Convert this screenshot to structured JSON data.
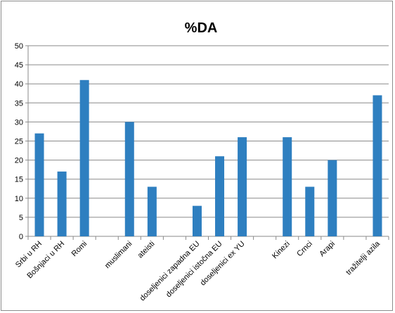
{
  "chart_data": {
    "type": "bar",
    "title": "%DA",
    "xlabel": "",
    "ylabel": "",
    "ylim": [
      0,
      50
    ],
    "y_ticks": [
      0,
      5,
      10,
      15,
      20,
      25,
      30,
      35,
      40,
      45,
      50
    ],
    "grid": true,
    "legend": "none",
    "bar_color": "#2e7fc0",
    "categories": [
      "Srbi u RH",
      "Bošnjaci u RH",
      "Romi",
      "",
      "muslimani",
      "ateisti",
      "",
      "doseljenici zapadna EU",
      "doseljenici istočna EU",
      "doseljenici ex YU",
      "",
      "Kinezi",
      "Crnci",
      "Arapi",
      "",
      "tražitelji azila"
    ],
    "values": [
      27,
      17,
      41,
      null,
      30,
      13,
      null,
      8,
      21,
      26,
      null,
      26,
      13,
      20,
      null,
      37
    ]
  }
}
